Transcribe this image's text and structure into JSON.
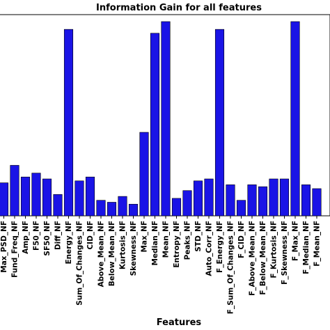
{
  "chart_data": {
    "type": "bar",
    "title": "Information Gain for all features",
    "xlabel": "Features",
    "ylabel": "",
    "ylim": [
      0,
      1.0
    ],
    "color": "#1a14e6",
    "edge_color": "#000000",
    "grid": false,
    "categories": [
      "Max_PSD_NF",
      "Fund_Freq_NF",
      "Amp_NF",
      "F50_NF",
      "SF50_NF",
      "Diff_NF",
      "Energy_NF",
      "Sum_Of_Changes_NF",
      "CID_NF",
      "Above_Mean_NF",
      "Below_Mean_NF",
      "Kurtosis_NF",
      "Skewness_NF",
      "Max_NF",
      "Median_NF",
      "Mean_NF",
      "Entropy_NF",
      "Peaks_NF",
      "STD_NF",
      "Auto_Corr_NF",
      "F_Energy_NF",
      "F_Sum_Of_Changes_NF",
      "F_CID_NF",
      "F_Above_Mean_NF",
      "F_Below_Mean_NF",
      "F_Kurtosis_NF",
      "F_Skewness_NF",
      "F_Max_NF",
      "F_Median_NF",
      "F_Mean_NF"
    ],
    "values": [
      0.17,
      0.26,
      0.2,
      0.22,
      0.19,
      0.11,
      0.96,
      0.18,
      0.2,
      0.08,
      0.07,
      0.1,
      0.06,
      0.43,
      0.94,
      1.0,
      0.09,
      0.13,
      0.18,
      0.19,
      0.96,
      0.16,
      0.08,
      0.16,
      0.15,
      0.19,
      0.19,
      1.0,
      0.16,
      0.14
    ]
  }
}
